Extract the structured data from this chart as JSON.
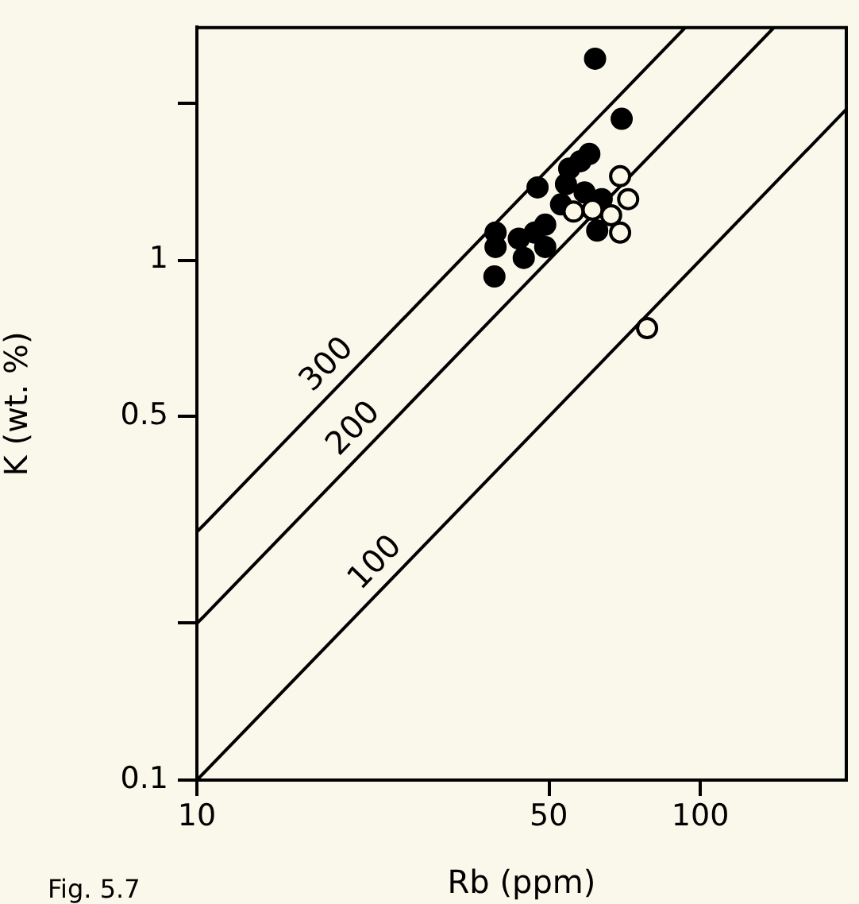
{
  "chart_data": {
    "type": "scatter",
    "xlabel": "Rb (ppm)",
    "ylabel": "K (wt. %)",
    "log": "xy",
    "grid": false,
    "legend": false,
    "xlim": [
      10,
      195
    ],
    "xticks": [
      10,
      50,
      100
    ],
    "ylim": [
      0.1,
      2.8
    ],
    "yticks": [
      0.1,
      {
        "value": 0.2,
        "label": null
      },
      0.5,
      1,
      {
        "value": 2,
        "label": null
      }
    ],
    "annotations": [
      "Fig. 5.7"
    ],
    "series": [
      {
        "type": "line",
        "name": "300",
        "color": "#000000",
        "x": [
          10,
          93.3
        ],
        "values": [
          0.3,
          2.8
        ]
      },
      {
        "type": "line",
        "name": "200",
        "color": "#000000",
        "x": [
          10,
          140
        ],
        "values": [
          0.2,
          2.8
        ]
      },
      {
        "type": "line",
        "name": "100",
        "color": "#000000",
        "x": [
          10,
          195
        ],
        "values": [
          0.1,
          1.95
        ]
      },
      {
        "marker": "circle",
        "color": "#000000",
        "x": [
          61.8,
          69.8,
          60.2,
          54.9,
          57.8,
          47.5,
          54.1,
          58.9,
          63.7,
          49.2,
          46.9,
          44.6,
          49.2,
          62.4,
          39.2,
          39.2,
          39.0,
          52.9,
          43.6
        ],
        "values": [
          2.44,
          1.87,
          1.6,
          1.5,
          1.55,
          1.38,
          1.4,
          1.35,
          1.31,
          1.17,
          1.13,
          1.01,
          1.06,
          1.14,
          1.13,
          1.06,
          0.93,
          1.28,
          1.1
        ]
      },
      {
        "marker": "circle",
        "color": "#fbf8e8",
        "x": [
          69.3,
          71.9,
          56.0,
          61.1,
          66.5,
          69.3,
          78.4
        ],
        "values": [
          1.45,
          1.31,
          1.24,
          1.25,
          1.22,
          1.13,
          0.74
        ]
      }
    ]
  }
}
